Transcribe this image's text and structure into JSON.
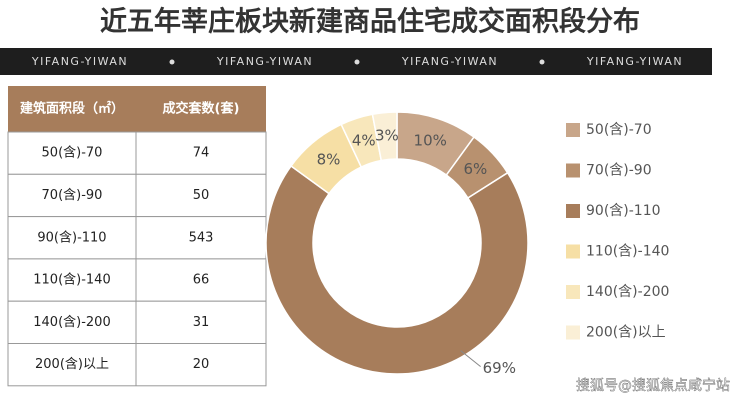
{
  "header": {
    "title": "近五年莘庄板块新建商品住宅成交面积段分布",
    "banner": [
      "YIFANG-YIWAN",
      "YIFANG-YIWAN",
      "YIFANG-YIWAN",
      "YIFANG-YIWAN"
    ]
  },
  "table": {
    "columns": [
      "建筑面积段（㎡）",
      "成交套数(套)"
    ],
    "rows": [
      [
        "50(含)-70",
        74
      ],
      [
        "70(含)-90",
        50
      ],
      [
        "90(含)-110",
        543
      ],
      [
        "110(含)-140",
        66
      ],
      [
        "140(含)-200",
        31
      ],
      [
        "200(含)以上",
        20
      ]
    ]
  },
  "chart_data": {
    "type": "pie",
    "donut": true,
    "categories": [
      "50(含)-70",
      "70(含)-90",
      "90(含)-110",
      "110(含)-140",
      "140(含)-200",
      "200(含)以上"
    ],
    "values": [
      10,
      6,
      69,
      8,
      4,
      3
    ],
    "value_labels": [
      "10%",
      "6%",
      "69%",
      "8%",
      "4%",
      "3%"
    ],
    "colors": [
      "#c8a68a",
      "#b8916f",
      "#a77d5b",
      "#f6dfa5",
      "#f8e7bb",
      "#faefd6"
    ]
  },
  "footer": {
    "watermark": "搜狐号@搜狐焦点咸宁站"
  }
}
